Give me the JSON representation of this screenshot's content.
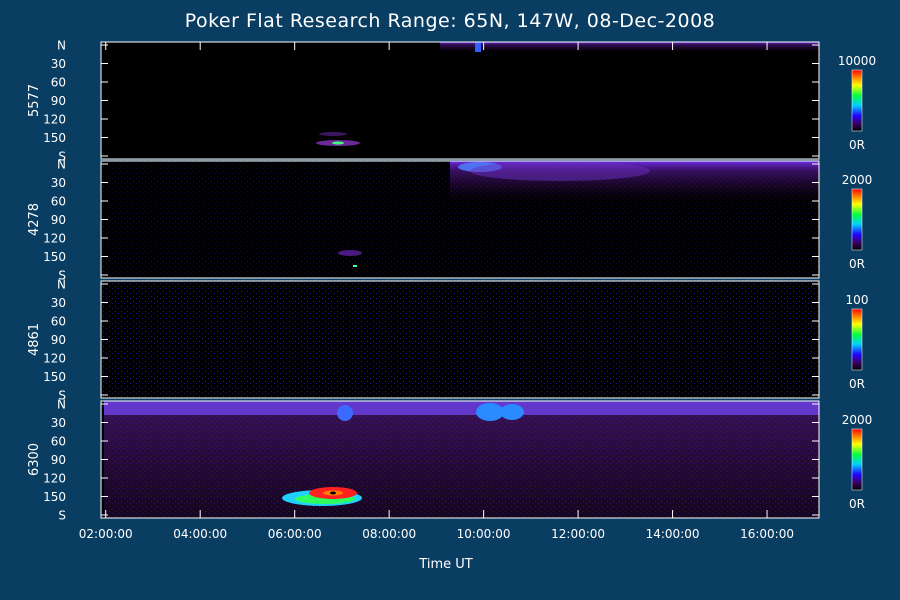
{
  "chart_data": {
    "type": "heatmap",
    "title": "Poker Flat Research Range: 65N, 147W, 08-Dec-2008",
    "xlabel": "Time UT",
    "x_ticks": [
      "02:00:00",
      "04:00:00",
      "06:00:00",
      "08:00:00",
      "10:00:00",
      "12:00:00",
      "14:00:00",
      "16:00:00"
    ],
    "y_ticks": [
      "N",
      "30",
      "60",
      "90",
      "120",
      "150",
      "S"
    ],
    "panels": [
      {
        "ylabel": "5577",
        "cbar_max": "10000",
        "cbar_min": "0R"
      },
      {
        "ylabel": "4278",
        "cbar_max": "2000",
        "cbar_min": "0R"
      },
      {
        "ylabel": "4861",
        "cbar_max": "100",
        "cbar_min": "0R"
      },
      {
        "ylabel": "6300",
        "cbar_max": "2000",
        "cbar_min": "0R"
      }
    ]
  }
}
